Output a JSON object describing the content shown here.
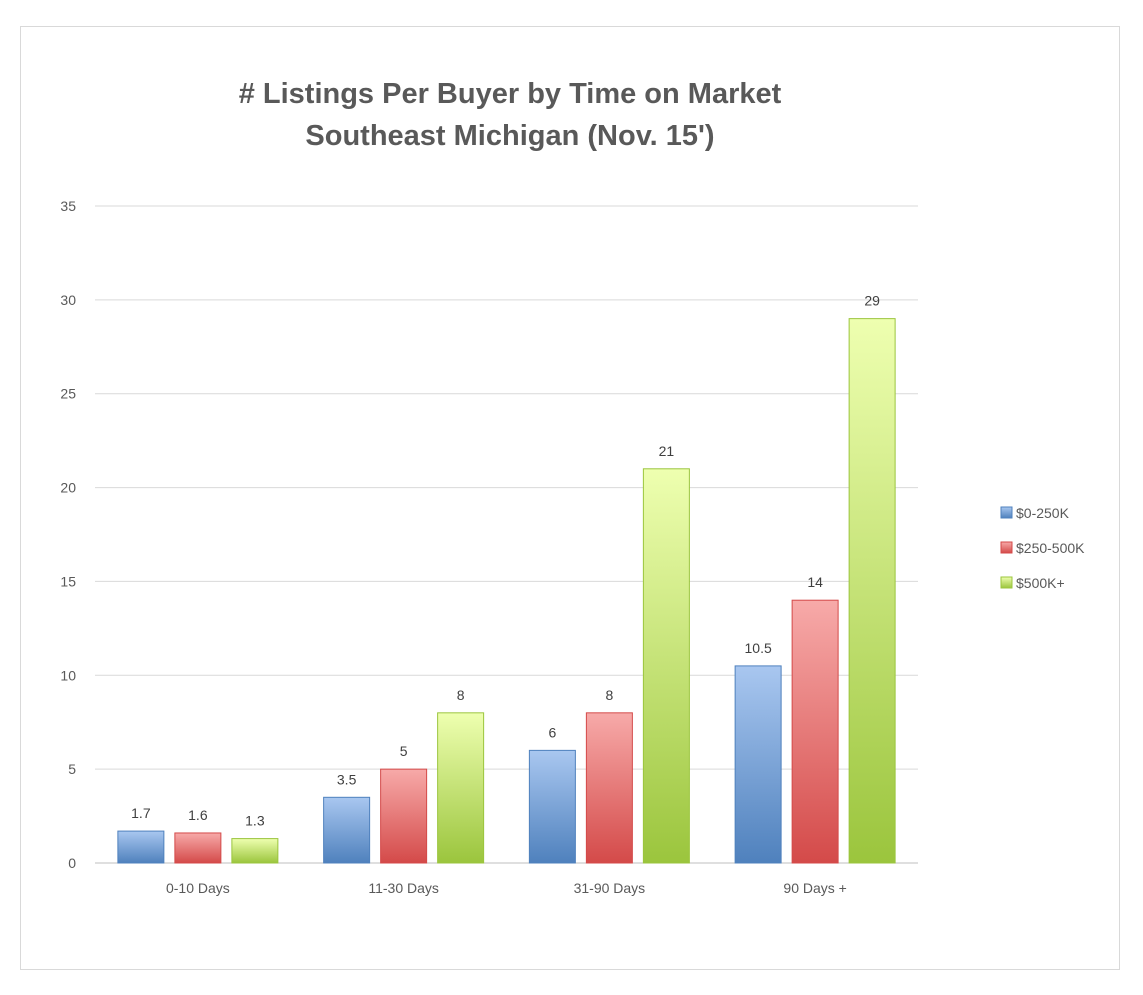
{
  "chart_data": {
    "type": "bar",
    "title": "# Listings Per Buyer by Time on Market",
    "subtitle": "Southeast Michigan (Nov. 15')",
    "xlabel": "",
    "ylabel": "",
    "categories": [
      "0-10 Days",
      "11-30 Days",
      "31-90 Days",
      "90 Days +"
    ],
    "series": [
      {
        "name": "$0-250K",
        "values": [
          1.7,
          3.5,
          6,
          10.5
        ],
        "color": "#4f81bd",
        "light": "#a9c7f0"
      },
      {
        "name": "$250-500K",
        "values": [
          1.6,
          5,
          8,
          14
        ],
        "color": "#d44a49",
        "light": "#f7aaa9"
      },
      {
        "name": "$500K+",
        "values": [
          1.3,
          8,
          21,
          29
        ],
        "color": "#9bc53d",
        "light": "#eeffb0"
      }
    ],
    "data_labels": [
      [
        "1.7",
        "3.5",
        "6",
        "10.5"
      ],
      [
        "1.6",
        "5",
        "8",
        "14"
      ],
      [
        "1.3",
        "8",
        "21",
        "29"
      ]
    ],
    "y_ticks": [
      "0",
      "5",
      "10",
      "15",
      "20",
      "25",
      "30",
      "35"
    ],
    "ylim": [
      0,
      35
    ],
    "grid": true,
    "legend_position": "right"
  }
}
